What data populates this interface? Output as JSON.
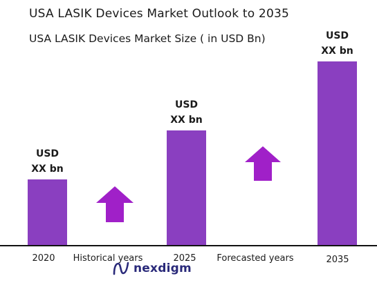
{
  "header": {
    "title": "USA LASIK Devices  Market Outlook to 2035",
    "subtitle": "USA LASIK Devices  Market Size  ( in USD Bn)"
  },
  "chart_data": {
    "type": "bar",
    "categories": [
      "2020",
      "2025",
      "2035"
    ],
    "values": [
      1.0,
      1.75,
      2.8
    ],
    "value_labels": [
      {
        "line1": "USD",
        "line2": "XX bn"
      },
      {
        "line1": "USD",
        "line2": "XX bn"
      },
      {
        "line1": "USD",
        "line2": "XX bn"
      }
    ],
    "period_labels": [
      "Historical years",
      "Forecasted years"
    ],
    "title": "USA LASIK Devices  Market Outlook to 2035",
    "subtitle": "USA LASIK Devices  Market Size  ( in USD Bn)",
    "bar_color": "#8a3fc0",
    "arrow_color": "#a020c8",
    "grid": false
  },
  "logo": {
    "text": "nexdigm",
    "icon": "nexdigm-logo-icon",
    "color": "#2a2a7a"
  }
}
